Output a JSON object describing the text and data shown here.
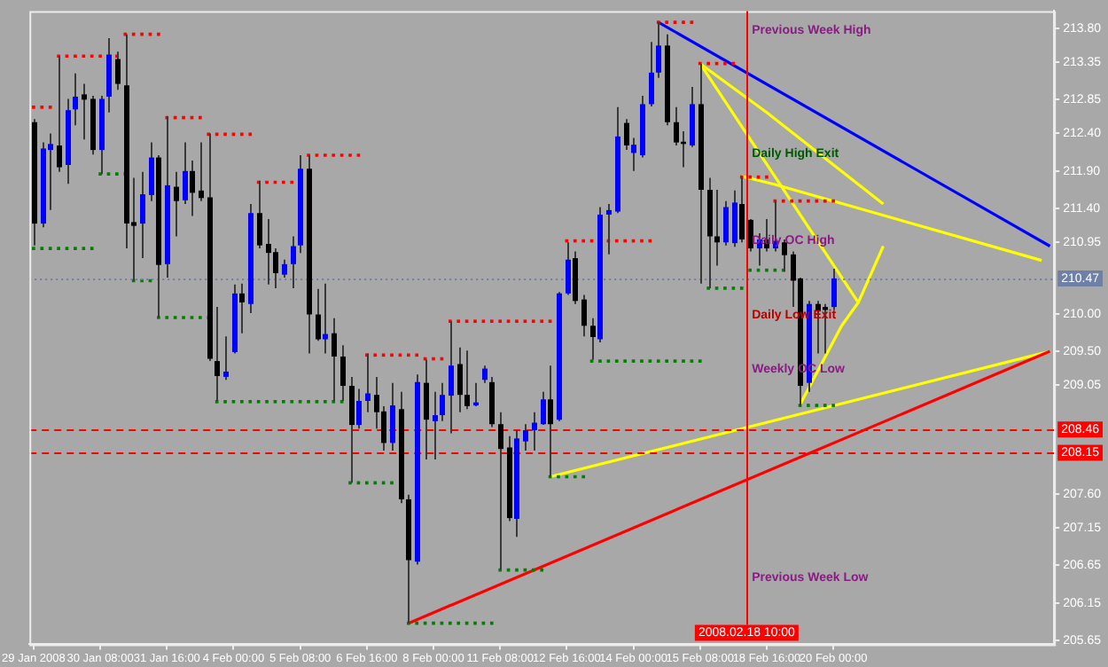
{
  "chart_data": {
    "type": "candlestick",
    "categories": [
      "29 Jan 2008",
      null,
      null,
      null,
      null,
      null,
      null,
      null,
      "30 Jan 08:00",
      null,
      null,
      null,
      null,
      null,
      null,
      null,
      "31 Jan 16:00",
      null,
      null,
      null,
      null,
      null,
      null,
      null,
      "4 Feb 00:00",
      null,
      null,
      null,
      null,
      null,
      null,
      null,
      "5 Feb 08:00",
      null,
      null,
      null,
      null,
      null,
      null,
      null,
      "6 Feb 16:00",
      null,
      null,
      null,
      null,
      null,
      null,
      null,
      "8 Feb 00:00",
      null,
      null,
      null,
      null,
      null,
      null,
      null,
      "11 Feb 08:00",
      null,
      null,
      null,
      null,
      null,
      null,
      null,
      "12 Feb 16:00",
      null,
      null,
      null,
      null,
      null,
      null,
      null,
      "14 Feb 00:00",
      null,
      null,
      null,
      null,
      null,
      null,
      null,
      "15 Feb 08:00",
      null,
      null,
      null,
      null,
      null,
      null,
      null,
      "18 Feb 16:00",
      null,
      null,
      null,
      null,
      null,
      null,
      null,
      "20 Feb 00:00",
      null,
      null,
      null,
      null,
      null,
      null,
      null,
      null,
      null,
      null,
      null,
      null,
      null,
      null,
      null,
      null,
      null,
      null,
      null,
      null,
      null,
      null,
      null,
      null,
      null,
      null
    ],
    "ohlc": [
      [
        212.55,
        212.59,
        210.91,
        211.2
      ],
      [
        211.2,
        212.28,
        211.15,
        212.2
      ],
      [
        212.18,
        212.4,
        211.38,
        212.26
      ],
      [
        212.24,
        213.43,
        211.89,
        211.95
      ],
      [
        211.98,
        212.86,
        211.73,
        212.71
      ],
      [
        212.72,
        213.2,
        212.51,
        212.89
      ],
      [
        212.92,
        213.06,
        212.32,
        212.85
      ],
      [
        212.86,
        212.9,
        212.12,
        212.18
      ],
      [
        212.18,
        212.9,
        211.86,
        212.86
      ],
      [
        212.89,
        213.67,
        212.68,
        213.45
      ],
      [
        213.39,
        213.49,
        212.98,
        213.06
      ],
      [
        213.04,
        213.72,
        210.87,
        211.2
      ],
      [
        211.22,
        211.81,
        210.44,
        211.17
      ],
      [
        211.2,
        211.89,
        210.74,
        211.59
      ],
      [
        211.58,
        212.28,
        211.5,
        212.08
      ],
      [
        212.08,
        212.11,
        209.94,
        210.65
      ],
      [
        210.66,
        212.63,
        210.48,
        211.71
      ],
      [
        211.69,
        211.89,
        211.03,
        211.5
      ],
      [
        211.51,
        212.28,
        211.46,
        211.9
      ],
      [
        211.9,
        212.04,
        211.3,
        211.61
      ],
      [
        211.64,
        212.28,
        211.5,
        211.54
      ],
      [
        211.55,
        212.4,
        209.37,
        209.4
      ],
      [
        209.37,
        210.09,
        208.84,
        209.17
      ],
      [
        209.16,
        209.7,
        209.12,
        209.23
      ],
      [
        209.49,
        210.39,
        209.47,
        210.27
      ],
      [
        210.27,
        210.4,
        209.74,
        210.15
      ],
      [
        210.13,
        211.46,
        210.01,
        211.34
      ],
      [
        211.34,
        211.77,
        210.87,
        210.91
      ],
      [
        210.93,
        211.26,
        210.39,
        210.81
      ],
      [
        210.82,
        210.87,
        210.34,
        210.54
      ],
      [
        210.52,
        210.72,
        210.48,
        210.66
      ],
      [
        210.66,
        211.03,
        210.34,
        210.9
      ],
      [
        210.91,
        212.11,
        210.81,
        211.93
      ],
      [
        211.93,
        212.11,
        209.47,
        209.99
      ],
      [
        209.99,
        210.33,
        209.64,
        209.66
      ],
      [
        209.66,
        210.4,
        209.47,
        209.73
      ],
      [
        209.74,
        209.94,
        208.84,
        209.43
      ],
      [
        209.43,
        209.58,
        208.84,
        209.04
      ],
      [
        209.04,
        209.16,
        207.75,
        208.52
      ],
      [
        208.52,
        209.0,
        208.47,
        208.84
      ],
      [
        208.84,
        209.47,
        208.69,
        208.94
      ],
      [
        208.92,
        209.16,
        208.47,
        208.69
      ],
      [
        208.7,
        208.77,
        208.18,
        208.28
      ],
      [
        208.28,
        209.08,
        208.18,
        208.78
      ],
      [
        208.73,
        208.96,
        207.48,
        207.53
      ],
      [
        207.53,
        207.59,
        205.88,
        206.72
      ],
      [
        206.7,
        209.19,
        206.66,
        209.09
      ],
      [
        209.08,
        209.39,
        208.06,
        208.59
      ],
      [
        208.57,
        208.96,
        208.06,
        208.65
      ],
      [
        208.65,
        209.08,
        208.57,
        208.92
      ],
      [
        208.91,
        209.9,
        208.41,
        209.31
      ],
      [
        209.33,
        209.55,
        208.69,
        208.92
      ],
      [
        208.92,
        209.51,
        208.73,
        208.77
      ],
      [
        208.78,
        209.08,
        208.77,
        208.82
      ],
      [
        209.12,
        209.31,
        209.08,
        209.27
      ],
      [
        209.09,
        209.16,
        208.49,
        208.53
      ],
      [
        208.53,
        208.69,
        206.59,
        208.2
      ],
      [
        208.22,
        208.37,
        207.24,
        207.28
      ],
      [
        207.27,
        208.45,
        207.03,
        208.34
      ],
      [
        208.3,
        208.53,
        208.18,
        208.45
      ],
      [
        208.45,
        208.69,
        208.18,
        208.55
      ],
      [
        208.53,
        208.96,
        208.52,
        208.86
      ],
      [
        208.86,
        209.31,
        207.83,
        208.53
      ],
      [
        208.59,
        210.29,
        208.57,
        210.27
      ],
      [
        210.27,
        210.95,
        210.25,
        210.72
      ],
      [
        210.74,
        210.83,
        210.13,
        210.17
      ],
      [
        210.19,
        210.25,
        209.7,
        209.84
      ],
      [
        209.84,
        209.94,
        209.39,
        209.69
      ],
      [
        209.66,
        211.42,
        209.62,
        211.32
      ],
      [
        211.32,
        211.46,
        210.79,
        211.38
      ],
      [
        211.36,
        212.75,
        211.34,
        212.36
      ],
      [
        212.54,
        212.59,
        212.18,
        212.24
      ],
      [
        212.14,
        212.34,
        211.9,
        212.25
      ],
      [
        212.11,
        212.9,
        212.08,
        212.79
      ],
      [
        212.79,
        213.62,
        212.76,
        213.21
      ],
      [
        213.21,
        213.88,
        213.14,
        213.57
      ],
      [
        213.57,
        213.72,
        212.51,
        212.55
      ],
      [
        212.55,
        212.75,
        212.24,
        212.28
      ],
      [
        212.29,
        212.43,
        211.95,
        212.26
      ],
      [
        212.24,
        213.02,
        212.22,
        212.79
      ],
      [
        212.79,
        213.33,
        210.4,
        211.65
      ],
      [
        211.65,
        211.81,
        210.34,
        211.03
      ],
      [
        211.03,
        211.65,
        210.64,
        210.95
      ],
      [
        210.95,
        211.5,
        210.91,
        211.42
      ],
      [
        210.94,
        211.64,
        210.89,
        211.48
      ],
      [
        211.46,
        211.82,
        210.95,
        210.99
      ],
      [
        211.25,
        211.26,
        210.83,
        210.87
      ],
      [
        210.87,
        211.07,
        210.64,
        210.99
      ],
      [
        210.99,
        211.26,
        210.83,
        210.87
      ],
      [
        210.87,
        211.5,
        210.83,
        210.97
      ],
      [
        210.95,
        210.99,
        210.56,
        210.78
      ],
      [
        210.79,
        210.83,
        210.09,
        210.44
      ],
      [
        210.47,
        210.48,
        208.77,
        209.04
      ],
      [
        209.08,
        210.17,
        208.96,
        210.13
      ],
      [
        210.13,
        210.17,
        209.47,
        210.03
      ],
      [
        210.09,
        210.13,
        209.47,
        210.05
      ],
      [
        210.09,
        210.6,
        210.05,
        210.47
      ],
      null,
      null,
      null,
      null,
      null,
      null,
      null,
      null,
      null,
      null,
      null,
      null,
      null,
      null,
      null,
      null,
      null,
      null,
      null,
      null,
      null,
      null,
      null,
      null,
      null,
      null
    ],
    "colors": [
      "#000000",
      "#0000ff",
      "#0000ff",
      "#000000",
      "#0000ff",
      "#0000ff",
      "#000000",
      "#000000",
      "#0000ff",
      "#0000ff",
      "#000000",
      "#000000",
      "#000000",
      "#0000ff",
      "#0000ff",
      "#000000",
      "#0000ff",
      "#000000",
      "#0000ff",
      "#000000",
      "#000000",
      "#000000",
      "#000000",
      "#0000ff",
      "#0000ff",
      "#000000",
      "#0000ff",
      "#000000",
      "#000000",
      "#000000",
      "#0000ff",
      "#0000ff",
      "#0000ff",
      "#000000",
      "#000000",
      "#0000ff",
      "#000000",
      "#000000",
      "#000000",
      "#0000ff",
      "#0000ff",
      "#000000",
      "#000000",
      "#0000ff",
      "#000000",
      "#000000",
      "#0000ff",
      "#000000",
      "#0000ff",
      "#0000ff",
      "#0000ff",
      "#000000",
      "#000000",
      "#0000ff",
      "#0000ff",
      "#000000",
      "#000000",
      "#000000",
      "#0000ff",
      "#0000ff",
      "#0000ff",
      "#0000ff",
      "#000000",
      "#0000ff",
      "#0000ff",
      "#000000",
      "#000000",
      "#000000",
      "#0000ff",
      "#0000ff",
      "#0000ff",
      "#000000",
      "#0000ff",
      "#0000ff",
      "#0000ff",
      "#0000ff",
      "#000000",
      "#000000",
      "#000000",
      "#0000ff",
      "#000000",
      "#000000",
      "#000000",
      "#0000ff",
      "#0000ff",
      "#000000",
      "#000000",
      "#0000ff",
      "#000000",
      "#0000ff",
      "#000000",
      "#000000",
      "#000000",
      "#0000ff",
      "#000000",
      "#000000",
      "#0000ff",
      null,
      null,
      null,
      null,
      null,
      null,
      null,
      null,
      null,
      null,
      null,
      null,
      null,
      null,
      null,
      null,
      null,
      null,
      null,
      null,
      null,
      null,
      null,
      null,
      null,
      null
    ],
    "series": [
      {
        "type": "scatter",
        "marker": "square",
        "color": "#ff0000",
        "values": [
          212.75,
          212.75,
          212.75,
          213.43,
          213.43,
          213.43,
          213.43,
          213.43,
          213.43,
          null,
          213.43,
          213.72,
          213.72,
          213.72,
          213.72,
          213.72,
          212.61,
          212.61,
          212.61,
          212.61,
          212.61,
          212.39,
          212.39,
          212.39,
          212.39,
          212.39,
          212.39,
          211.75,
          211.75,
          211.75,
          211.75,
          211.75,
          null,
          212.11,
          212.11,
          212.11,
          212.11,
          212.11,
          212.11,
          212.11,
          209.45,
          209.45,
          209.45,
          209.45,
          209.45,
          209.45,
          209.45,
          209.4,
          209.4,
          209.4,
          209.9,
          209.9,
          209.9,
          209.9,
          209.9,
          209.9,
          209.9,
          209.9,
          209.9,
          209.9,
          209.9,
          209.9,
          209.9,
          null,
          210.97,
          210.97,
          210.97,
          210.97,
          null,
          210.97,
          210.97,
          210.97,
          210.97,
          210.97,
          210.97,
          213.88,
          213.88,
          213.88,
          213.88,
          213.88,
          213.33,
          213.33,
          213.33,
          213.33,
          213.33,
          211.82,
          211.82,
          211.82,
          211.82,
          211.5,
          211.5,
          211.5,
          211.5,
          211.5,
          211.5,
          211.5,
          211.5,
          null,
          null,
          null,
          null,
          null,
          null,
          null,
          null,
          null,
          null,
          null,
          null,
          null,
          null,
          null,
          null,
          null,
          null,
          null,
          null,
          null,
          null,
          null,
          null,
          null,
          null
        ]
      },
      {
        "type": "scatter",
        "marker": "square",
        "color": "#008000",
        "values": [
          210.87,
          210.87,
          210.87,
          210.87,
          210.87,
          210.87,
          210.87,
          210.87,
          211.86,
          211.86,
          211.86,
          211.86,
          210.44,
          210.44,
          210.44,
          209.95,
          209.95,
          209.95,
          209.95,
          209.95,
          209.95,
          209.95,
          208.83,
          208.83,
          208.83,
          208.83,
          208.83,
          208.83,
          208.83,
          208.83,
          208.83,
          208.83,
          208.83,
          208.83,
          208.83,
          208.83,
          208.83,
          208.83,
          207.75,
          207.75,
          207.75,
          207.75,
          207.75,
          207.75,
          null,
          205.88,
          205.88,
          205.88,
          205.88,
          205.88,
          205.88,
          205.88,
          205.88,
          205.88,
          205.88,
          205.88,
          206.59,
          206.59,
          206.59,
          206.59,
          206.59,
          206.59,
          207.83,
          207.83,
          207.83,
          207.83,
          207.83,
          209.37,
          209.37,
          209.37,
          209.37,
          209.37,
          209.37,
          209.37,
          209.37,
          209.37,
          209.37,
          209.37,
          209.37,
          209.37,
          209.37,
          210.34,
          210.34,
          210.34,
          210.34,
          210.34,
          210.58,
          210.58,
          210.58,
          210.58,
          210.58,
          null,
          208.78,
          208.78,
          208.78,
          208.78,
          208.78,
          null,
          null,
          null,
          null,
          null,
          null,
          null,
          null,
          null,
          null,
          null,
          null,
          null,
          null,
          null,
          null,
          null,
          null,
          null,
          null,
          null,
          null,
          null,
          null,
          null,
          null
        ]
      },
      {
        "type": "line",
        "color": "#ff0000",
        "values": [
          null,
          null,
          null,
          null,
          null,
          null,
          null,
          null,
          null,
          null,
          null,
          null,
          null,
          null,
          null,
          null,
          null,
          null,
          null,
          null,
          null,
          null,
          null,
          null,
          null,
          null,
          null,
          null,
          null,
          null,
          null,
          null,
          null,
          null,
          null,
          null,
          null,
          null,
          null,
          null,
          null,
          null,
          null,
          null,
          null,
          205.88,
          null,
          null,
          null,
          null,
          null,
          null,
          null,
          null,
          null,
          null,
          null,
          null,
          null,
          null,
          null,
          null,
          null,
          null,
          null,
          null,
          null,
          null,
          null,
          null,
          null,
          null,
          null,
          null,
          null,
          null,
          null,
          null,
          null,
          null,
          null,
          null,
          null,
          null,
          null,
          null,
          null,
          null,
          null,
          null,
          null,
          null,
          null,
          null,
          null,
          null,
          null,
          null,
          null,
          null,
          null,
          null,
          null,
          null,
          null,
          null,
          null,
          null,
          null,
          null,
          null,
          null,
          null,
          null,
          null,
          null,
          null,
          null,
          null,
          null,
          null,
          null,
          209.5
        ]
      },
      {
        "type": "line",
        "color": "#0000ff",
        "values": [
          null,
          null,
          null,
          null,
          null,
          null,
          null,
          null,
          null,
          null,
          null,
          null,
          null,
          null,
          null,
          null,
          null,
          null,
          null,
          null,
          null,
          null,
          null,
          null,
          null,
          null,
          null,
          null,
          null,
          null,
          null,
          null,
          null,
          null,
          null,
          null,
          null,
          null,
          null,
          null,
          null,
          null,
          null,
          null,
          null,
          null,
          null,
          null,
          null,
          null,
          null,
          null,
          null,
          null,
          null,
          null,
          null,
          null,
          null,
          null,
          null,
          null,
          null,
          null,
          null,
          null,
          null,
          null,
          null,
          null,
          null,
          null,
          null,
          null,
          null,
          213.88,
          null,
          null,
          null,
          null,
          null,
          null,
          null,
          null,
          null,
          null,
          null,
          null,
          null,
          null,
          null,
          null,
          null,
          null,
          null,
          null,
          null,
          null,
          null,
          null,
          null,
          null,
          null,
          null,
          null,
          null,
          null,
          null,
          null,
          null,
          null,
          null,
          null,
          null,
          null,
          null,
          null,
          null,
          null,
          null,
          null,
          null,
          210.9
        ]
      },
      {
        "type": "line",
        "color": "#ffff00",
        "values": [
          null,
          null,
          null,
          null,
          null,
          null,
          null,
          null,
          null,
          null,
          null,
          null,
          null,
          null,
          null,
          null,
          null,
          null,
          null,
          null,
          null,
          null,
          null,
          null,
          null,
          null,
          null,
          null,
          null,
          null,
          null,
          null,
          null,
          null,
          null,
          null,
          null,
          null,
          null,
          null,
          null,
          null,
          null,
          null,
          null,
          null,
          null,
          null,
          null,
          null,
          null,
          null,
          null,
          null,
          null,
          null,
          null,
          null,
          null,
          null,
          null,
          null,
          207.83,
          null,
          null,
          null,
          null,
          null,
          null,
          null,
          null,
          null,
          null,
          null,
          null,
          null,
          null,
          null,
          null,
          null,
          null,
          null,
          null,
          null,
          null,
          null,
          null,
          null,
          null,
          null,
          null,
          null,
          null,
          null,
          null,
          null,
          null,
          null,
          null,
          null,
          null,
          null,
          null,
          null,
          null,
          null,
          null,
          null,
          null,
          null,
          null,
          null,
          null,
          null,
          null,
          null,
          null,
          null,
          null,
          null,
          null,
          null,
          209.5
        ]
      },
      {
        "type": "line",
        "color": "#ffff00",
        "values": [
          null,
          null,
          null,
          null,
          null,
          null,
          null,
          null,
          null,
          null,
          null,
          null,
          null,
          null,
          null,
          null,
          null,
          null,
          null,
          null,
          null,
          null,
          null,
          null,
          null,
          null,
          null,
          null,
          null,
          null,
          null,
          null,
          null,
          null,
          null,
          null,
          null,
          null,
          null,
          null,
          null,
          null,
          null,
          null,
          null,
          null,
          null,
          null,
          null,
          null,
          null,
          null,
          null,
          null,
          null,
          null,
          null,
          null,
          null,
          null,
          null,
          null,
          null,
          null,
          null,
          null,
          null,
          null,
          null,
          null,
          null,
          null,
          null,
          null,
          null,
          null,
          null,
          null,
          null,
          null,
          213.33,
          null,
          null,
          null,
          null,
          null,
          null,
          null,
          212.68,
          null,
          null,
          null,
          null,
          null,
          null,
          null,
          null,
          null,
          null,
          null,
          null,
          null,
          211.46,
          null,
          null,
          null,
          null,
          null,
          null,
          null,
          null,
          null,
          null,
          null,
          null,
          null,
          null,
          null,
          null,
          null,
          null,
          null,
          null
        ]
      },
      {
        "type": "line",
        "color": "#ffff00",
        "values": [
          null,
          null,
          null,
          null,
          null,
          null,
          null,
          null,
          null,
          null,
          null,
          null,
          null,
          null,
          null,
          null,
          null,
          null,
          null,
          null,
          null,
          null,
          null,
          null,
          null,
          null,
          null,
          null,
          null,
          null,
          null,
          null,
          null,
          null,
          null,
          null,
          null,
          null,
          null,
          null,
          null,
          null,
          null,
          null,
          null,
          null,
          null,
          null,
          null,
          null,
          null,
          null,
          null,
          null,
          null,
          null,
          null,
          null,
          null,
          null,
          null,
          null,
          null,
          null,
          null,
          null,
          null,
          null,
          null,
          null,
          null,
          null,
          null,
          null,
          null,
          null,
          null,
          null,
          null,
          null,
          213.33,
          null,
          null,
          null,
          null,
          null,
          null,
          null,
          null,
          null,
          null,
          null,
          null,
          null,
          null,
          null,
          null,
          null,
          null,
          210.15,
          null,
          null,
          210.9,
          null,
          null,
          null,
          null,
          null,
          null,
          null,
          null,
          null,
          null,
          null,
          null,
          null,
          null,
          null,
          null,
          null,
          null,
          null,
          null
        ]
      },
      {
        "type": "line",
        "color": "#ffff00",
        "values": [
          null,
          null,
          null,
          null,
          null,
          null,
          null,
          null,
          null,
          null,
          null,
          null,
          null,
          null,
          null,
          null,
          null,
          null,
          null,
          null,
          null,
          null,
          null,
          null,
          null,
          null,
          null,
          null,
          null,
          null,
          null,
          null,
          null,
          null,
          null,
          null,
          null,
          null,
          null,
          null,
          null,
          null,
          null,
          null,
          null,
          null,
          null,
          null,
          null,
          null,
          null,
          null,
          null,
          null,
          null,
          null,
          null,
          null,
          null,
          null,
          null,
          null,
          null,
          null,
          null,
          null,
          null,
          null,
          null,
          null,
          null,
          null,
          null,
          null,
          null,
          null,
          null,
          null,
          null,
          null,
          null,
          null,
          null,
          null,
          null,
          null,
          null,
          null,
          null,
          null,
          null,
          null,
          208.79,
          null,
          null,
          209.42,
          null,
          209.84,
          null,
          210.15,
          null,
          null,
          null,
          null,
          null,
          null,
          null,
          null,
          null,
          null,
          null,
          null,
          null,
          null,
          null,
          null,
          null,
          null,
          null,
          null,
          null,
          null,
          null
        ]
      },
      {
        "type": "line",
        "color": "#ffff00",
        "values": [
          null,
          null,
          null,
          null,
          null,
          null,
          null,
          null,
          null,
          null,
          null,
          null,
          null,
          null,
          null,
          null,
          null,
          null,
          null,
          null,
          null,
          null,
          null,
          null,
          null,
          null,
          null,
          null,
          null,
          null,
          null,
          null,
          null,
          null,
          null,
          null,
          null,
          null,
          null,
          null,
          null,
          null,
          null,
          null,
          null,
          null,
          null,
          null,
          null,
          null,
          null,
          null,
          null,
          null,
          null,
          null,
          null,
          null,
          null,
          null,
          null,
          null,
          null,
          null,
          null,
          null,
          null,
          null,
          null,
          null,
          null,
          null,
          null,
          null,
          null,
          null,
          null,
          null,
          null,
          null,
          null,
          null,
          null,
          null,
          null,
          211.83,
          null,
          null,
          null,
          211.72,
          null,
          null,
          null,
          null,
          null,
          null,
          null,
          null,
          null,
          null,
          null,
          null,
          null,
          null,
          null,
          null,
          null,
          null,
          null,
          null,
          null,
          null,
          null,
          null,
          null,
          null,
          null,
          null,
          null,
          null,
          null,
          210.71,
          null
        ]
      }
    ],
    "ylim": [
      205.6,
      214.03
    ],
    "yticks": [
      {
        "value": 213.8,
        "label": "213.80"
      },
      213.35,
      212.85,
      {
        "value": 212.4,
        "label": "212.40"
      },
      {
        "value": 211.9,
        "label": "211.90"
      },
      {
        "value": 211.4,
        "label": "211.40"
      },
      210.95,
      {
        "value": 210,
        "label": "210.00"
      },
      {
        "value": 209.5,
        "label": "209.50"
      },
      209.05,
      {
        "value": 207.6,
        "label": "207.60"
      },
      207.15,
      206.65,
      206.15,
      205.65
    ],
    "ref_lines": [
      {
        "axis": "y",
        "value": 210.47,
        "label": "210.47",
        "color": "#6f7fa6",
        "line_style": "dotted"
      },
      {
        "axis": "y",
        "value": 208.46,
        "label": "208.46",
        "color": "#ff0000",
        "line_style": "dashed"
      },
      {
        "axis": "y",
        "value": 208.15,
        "label": "208.15",
        "color": "#ff0000",
        "line_style": "dashed"
      }
    ],
    "annotations": [
      "Previous Week High",
      "Daily High Exit",
      {
        "text": "Daily OC High",
        "y": 210.97
      },
      {
        "text": "Daily Low Exit",
        "y": 209.98
      },
      {
        "text": "Weekly OC Low",
        "y": 209.26
      },
      "Previous Week Low",
      "2008.02.18 10:00"
    ],
    "grid": false,
    "legend": false
  }
}
